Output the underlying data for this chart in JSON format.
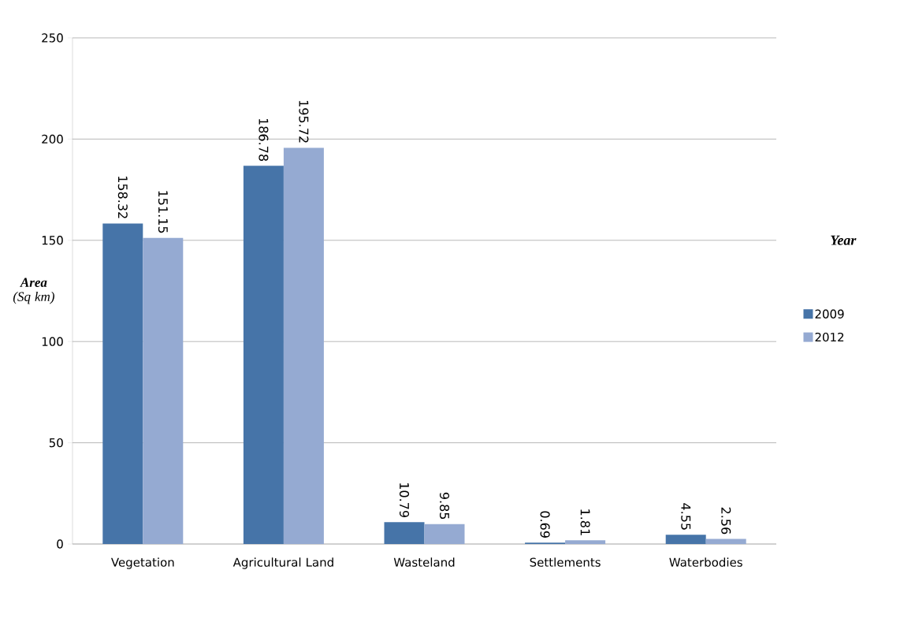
{
  "chart_data": {
    "type": "bar",
    "ylabel": "**Area** (Sq km)",
    "legend_title": "Year",
    "categories": [
      "Vegetation",
      "Agricultural Land",
      "Wasteland",
      "Settlements",
      "Waterbodies"
    ],
    "series": [
      {
        "name": "2009",
        "color": "#4674a8",
        "values": [
          158.32,
          186.78,
          10.79,
          0.69,
          4.55
        ]
      },
      {
        "name": "2012",
        "color": "#95aad2",
        "values": [
          151.15,
          195.72,
          9.85,
          1.81,
          2.56
        ]
      }
    ],
    "ylim": [
      0,
      250
    ],
    "yticks": [
      0,
      50,
      100,
      150,
      200,
      250
    ],
    "grid": "y",
    "legend": "right",
    "data_labels": true
  }
}
